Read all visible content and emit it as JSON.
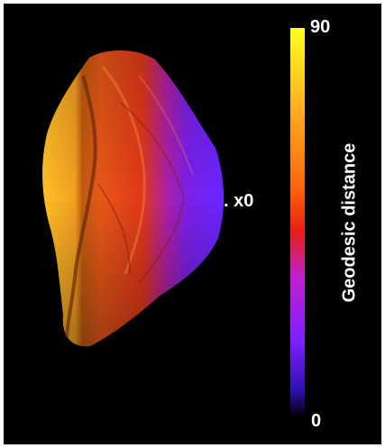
{
  "figure": {
    "marker_label": ". x0",
    "colorbar": {
      "title": "Geodesic distance",
      "max_label": "90",
      "min_label": "0",
      "colors": [
        "#ffff20",
        "#ffb020",
        "#ff6a10",
        "#e82010",
        "#c020d0",
        "#8020ff",
        "#3010b0",
        "#000000"
      ]
    },
    "background_color": "#000000"
  }
}
